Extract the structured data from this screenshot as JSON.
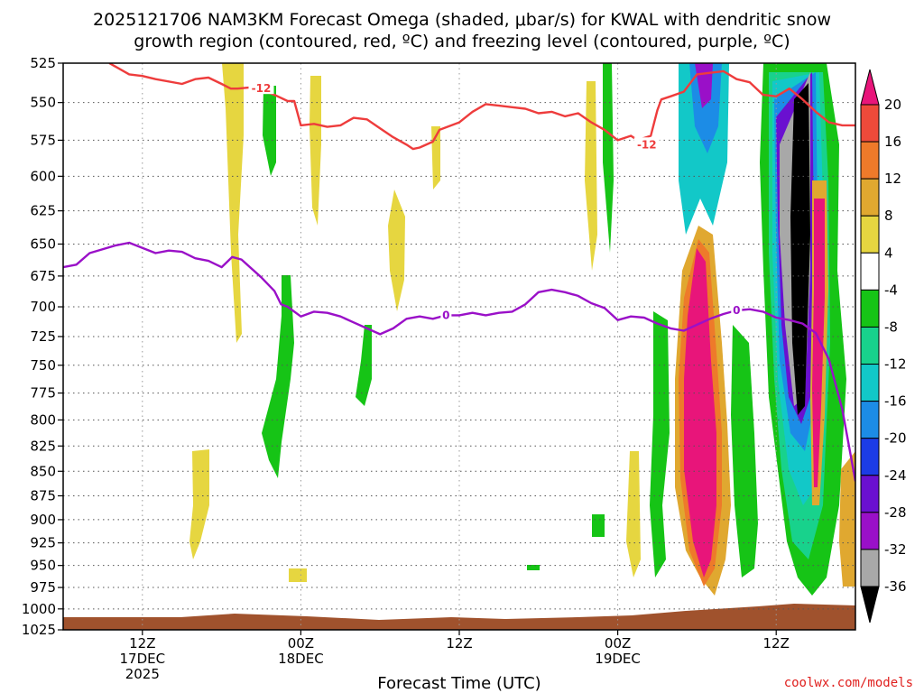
{
  "chart_data": {
    "type": "heatmap",
    "title_line1": "2025121706 NAM3KM Forecast Omega (shaded, μbar/s) for KWAL with dendritic snow",
    "title_line2": "growth region (contoured, red, ºC) and freezing level (contoured, purple, ºC)",
    "xlabel": "Forecast Time (UTC)",
    "credit": "coolwx.com/models",
    "x_range_hours": [
      0,
      60
    ],
    "y_levels_hpa": [
      525,
      550,
      575,
      600,
      625,
      650,
      675,
      700,
      725,
      750,
      775,
      800,
      825,
      850,
      875,
      900,
      925,
      950,
      975,
      1000,
      1025
    ],
    "x_ticks": [
      {
        "hour": 6,
        "line1": "12Z",
        "line2": "17DEC",
        "line3": "2025"
      },
      {
        "hour": 18,
        "line1": "00Z",
        "line2": "18DEC",
        "line3": ""
      },
      {
        "hour": 30,
        "line1": "12Z",
        "line2": "",
        "line3": ""
      },
      {
        "hour": 42,
        "line1": "00Z",
        "line2": "19DEC",
        "line3": ""
      },
      {
        "hour": 54,
        "line1": "12Z",
        "line2": "",
        "line3": ""
      }
    ],
    "colorbar": {
      "labels": [
        "20",
        "16",
        "12",
        "8",
        "4",
        "-4",
        "-8",
        "-12",
        "-16",
        "-20",
        "-24",
        "-28",
        "-32",
        "-36"
      ],
      "colors": [
        "#e8157a",
        "#ee4a3a",
        "#ee7a2a",
        "#e0a830",
        "#e6d640",
        "#ffffff",
        "#16c416",
        "#18d28c",
        "#12c8c8",
        "#1c8ce6",
        "#1c3ce6",
        "#6a10d0",
        "#9a10c8",
        "#a8a8a8",
        "#000000"
      ]
    },
    "series": [
      {
        "name": "-12 C isotherm (dendritic snow growth)",
        "color": "#ee3c3c",
        "label": "-12",
        "label_positions": [
          {
            "hour": 15.0,
            "hpa": 541
          },
          {
            "hour": 44.2,
            "hpa": 578
          }
        ],
        "points": [
          [
            3.5,
            525
          ],
          [
            5,
            532
          ],
          [
            6,
            533
          ],
          [
            7,
            535
          ],
          [
            9,
            538
          ],
          [
            10,
            535
          ],
          [
            11,
            534
          ],
          [
            12,
            538
          ],
          [
            12.7,
            541
          ],
          [
            13.2,
            541
          ],
          [
            14.5,
            540
          ],
          [
            16,
            545
          ],
          [
            17,
            549
          ],
          [
            17.5,
            549
          ],
          [
            18,
            565
          ],
          [
            19,
            564
          ],
          [
            20,
            566
          ],
          [
            21,
            565
          ],
          [
            22,
            560
          ],
          [
            23,
            561
          ],
          [
            24,
            567
          ],
          [
            25,
            573
          ],
          [
            26,
            578
          ],
          [
            26.5,
            581
          ],
          [
            27,
            580
          ],
          [
            28,
            576
          ],
          [
            28.5,
            568
          ],
          [
            30,
            563
          ],
          [
            31,
            556
          ],
          [
            32,
            551
          ],
          [
            33,
            552
          ],
          [
            34,
            553
          ],
          [
            35,
            554
          ],
          [
            36,
            557
          ],
          [
            37,
            556
          ],
          [
            38,
            559
          ],
          [
            39,
            557
          ],
          [
            40,
            563
          ],
          [
            41,
            568
          ],
          [
            42,
            575
          ],
          [
            43,
            572
          ],
          [
            43.5,
            575
          ],
          [
            44.5,
            572
          ],
          [
            45,
            555
          ],
          [
            45.3,
            548
          ],
          [
            46,
            546
          ],
          [
            47,
            543
          ],
          [
            48,
            532
          ],
          [
            49,
            531
          ],
          [
            50,
            530
          ],
          [
            51,
            535
          ],
          [
            52,
            537
          ],
          [
            53,
            545
          ],
          [
            54,
            546
          ],
          [
            55,
            541
          ],
          [
            56,
            548
          ],
          [
            57,
            556
          ],
          [
            58,
            563
          ],
          [
            59,
            565
          ],
          [
            60,
            565
          ]
        ]
      },
      {
        "name": "0 C isotherm (freezing level)",
        "color": "#9a10c8",
        "label": "0",
        "label_positions": [
          {
            "hour": 29.0,
            "hpa": 707
          },
          {
            "hour": 51.0,
            "hpa": 703
          }
        ],
        "points": [
          [
            0,
            668
          ],
          [
            1,
            666
          ],
          [
            2,
            657
          ],
          [
            4,
            651
          ],
          [
            5,
            649
          ],
          [
            6,
            653
          ],
          [
            7,
            657
          ],
          [
            8,
            655
          ],
          [
            9,
            656
          ],
          [
            10,
            661
          ],
          [
            11,
            663
          ],
          [
            12,
            668
          ],
          [
            12.8,
            660
          ],
          [
            13.5,
            662
          ],
          [
            15,
            676
          ],
          [
            16,
            687
          ],
          [
            16.5,
            698
          ],
          [
            17,
            700
          ],
          [
            18,
            708
          ],
          [
            19,
            704
          ],
          [
            20,
            705
          ],
          [
            21,
            708
          ],
          [
            22,
            713
          ],
          [
            23,
            718
          ],
          [
            24,
            723
          ],
          [
            25,
            718
          ],
          [
            26,
            710
          ],
          [
            27,
            708
          ],
          [
            28,
            710
          ],
          [
            29,
            707
          ],
          [
            30,
            707
          ],
          [
            31,
            705
          ],
          [
            32,
            707
          ],
          [
            33,
            705
          ],
          [
            34,
            704
          ],
          [
            35,
            698
          ],
          [
            36,
            688
          ],
          [
            37,
            686
          ],
          [
            38,
            688
          ],
          [
            39,
            691
          ],
          [
            40,
            697
          ],
          [
            41,
            701
          ],
          [
            42,
            711
          ],
          [
            43,
            708
          ],
          [
            44,
            709
          ],
          [
            45,
            714
          ],
          [
            46,
            718
          ],
          [
            47,
            720
          ],
          [
            48,
            715
          ],
          [
            49,
            710
          ],
          [
            50,
            706
          ],
          [
            51,
            703
          ],
          [
            52,
            702
          ],
          [
            53,
            704
          ],
          [
            54,
            709
          ],
          [
            55,
            711
          ],
          [
            56,
            714
          ],
          [
            57,
            722
          ],
          [
            58,
            745
          ],
          [
            59,
            790
          ],
          [
            60,
            860
          ]
        ]
      }
    ]
  }
}
